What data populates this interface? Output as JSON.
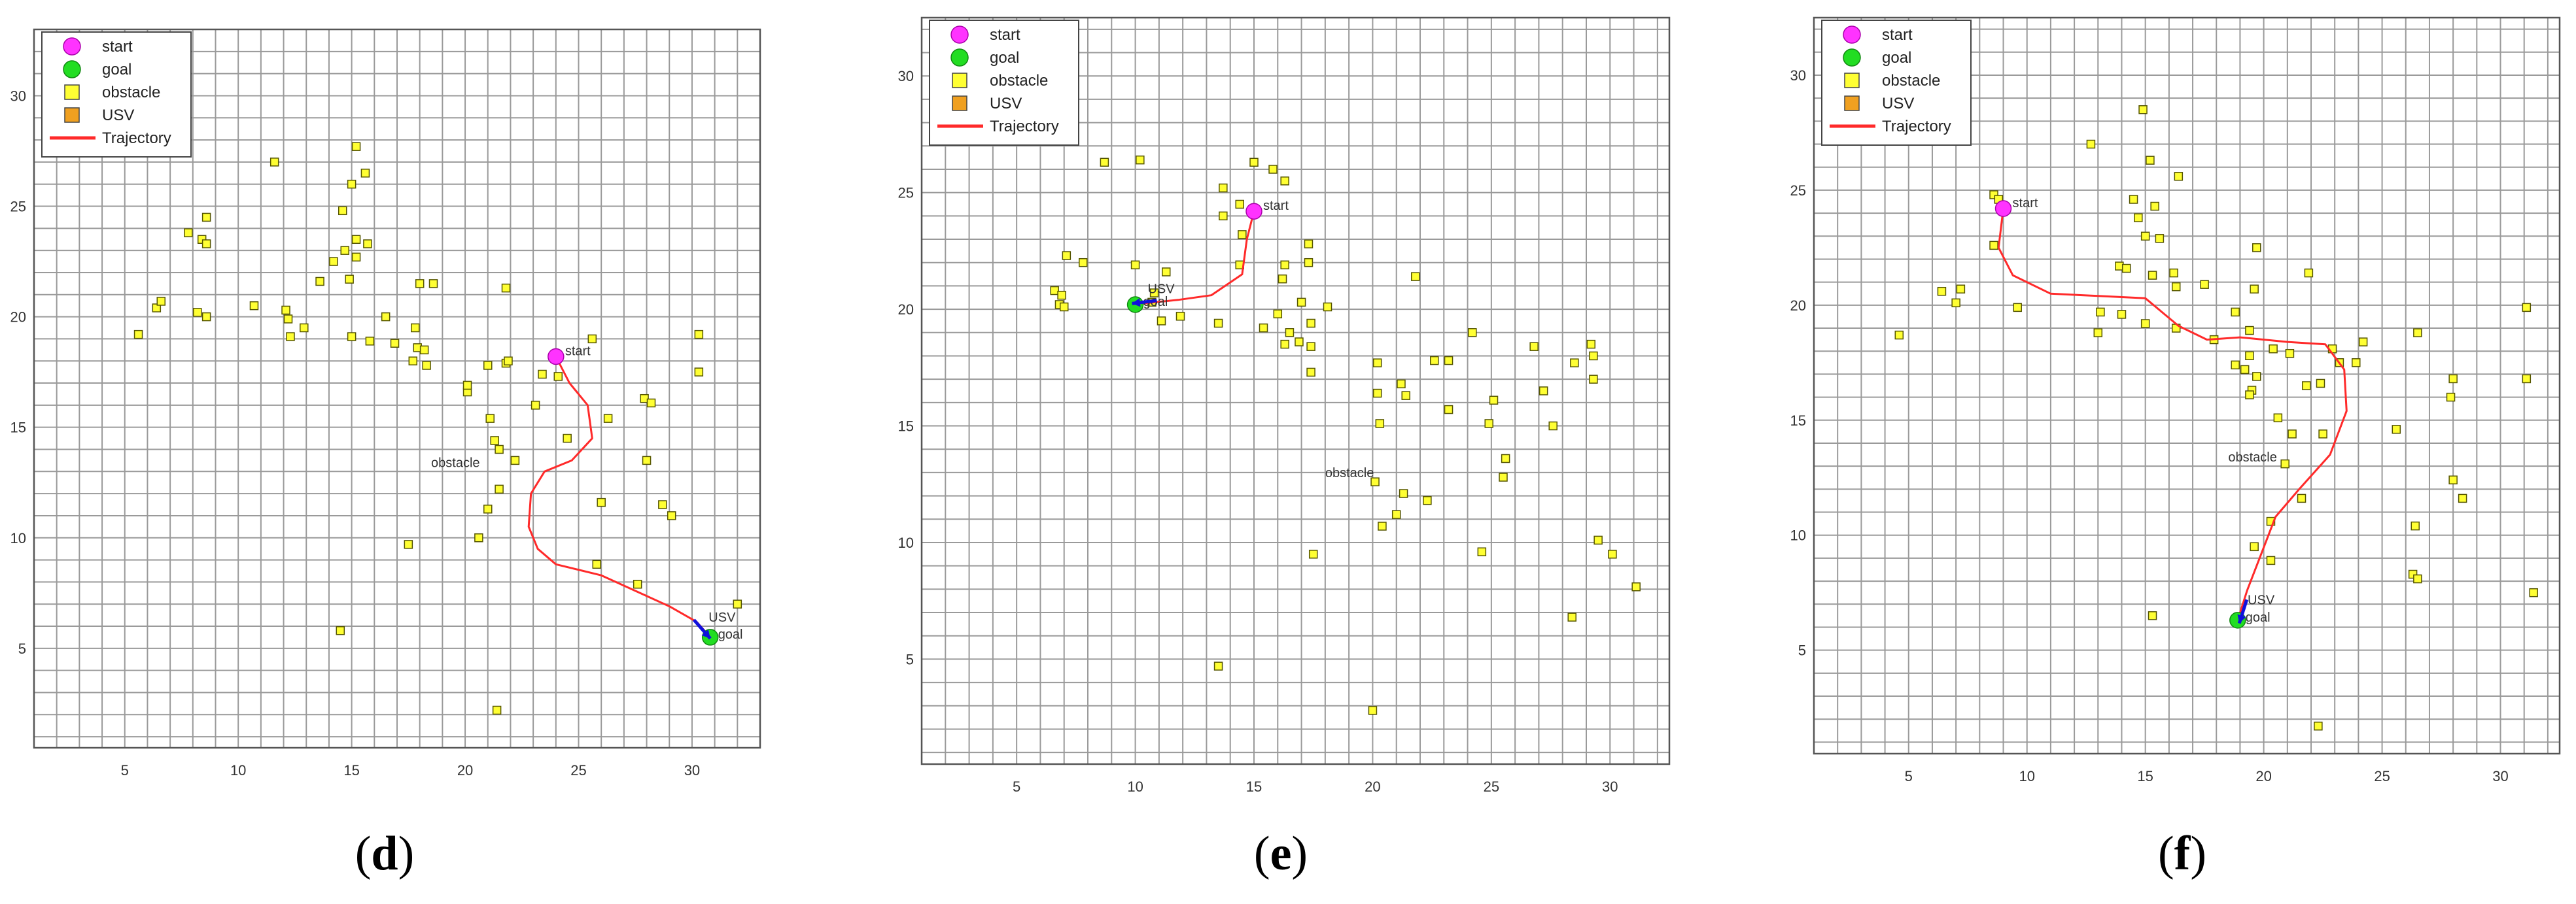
{
  "legend_labels": [
    "start",
    "goal",
    "obstacle",
    "USV",
    "Trajectory"
  ],
  "colors": {
    "start": "#ff33ff",
    "goal": "#22dd22",
    "obstacle": "#ffff33",
    "usv": "#f0a020",
    "trajectory": "#ff2a2a",
    "usv_arrow": "#1010dd",
    "grid": "#9a9a9a"
  },
  "chart_data": [
    {
      "type": "scatter",
      "caption_letter": "d",
      "title": "",
      "xlabel": "",
      "ylabel": "",
      "xlim": [
        1,
        33
      ],
      "ylim": [
        0.5,
        33
      ],
      "grid": true,
      "legend_position": "top-left",
      "x_ticks": [
        5,
        10,
        15,
        20,
        25,
        30
      ],
      "y_ticks": [
        5,
        10,
        15,
        20,
        25,
        30
      ],
      "obstacle_label": "obstacle",
      "obstacle_label_at": [
        18.5,
        13.2
      ],
      "start": {
        "x": 24,
        "y": 18.2,
        "label": "start"
      },
      "goal": {
        "x": 30.8,
        "y": 5.5,
        "label": "goal"
      },
      "usv": {
        "x": 30.5,
        "y": 5.8,
        "label": "USV"
      },
      "trajectory": [
        [
          24,
          18.2
        ],
        [
          24.6,
          17
        ],
        [
          25.4,
          16
        ],
        [
          25.6,
          14.5
        ],
        [
          24.7,
          13.5
        ],
        [
          23.5,
          13
        ],
        [
          22.9,
          12
        ],
        [
          22.8,
          10.5
        ],
        [
          23.2,
          9.5
        ],
        [
          24,
          8.8
        ],
        [
          26,
          8.3
        ],
        [
          27.5,
          7.6
        ],
        [
          29,
          6.9
        ],
        [
          30.2,
          6.2
        ],
        [
          30.8,
          5.5
        ]
      ],
      "obstacles": [
        [
          11.6,
          27
        ],
        [
          15.2,
          27.7
        ],
        [
          15.6,
          26.5
        ],
        [
          15,
          26
        ],
        [
          8.6,
          24.5
        ],
        [
          14.6,
          24.8
        ],
        [
          7.8,
          23.8
        ],
        [
          8.4,
          23.5
        ],
        [
          8.6,
          23.3
        ],
        [
          15.2,
          23.5
        ],
        [
          15.7,
          23.3
        ],
        [
          14.7,
          23
        ],
        [
          15.2,
          22.7
        ],
        [
          14.2,
          22.5
        ],
        [
          13.6,
          21.6
        ],
        [
          14.9,
          21.7
        ],
        [
          18,
          21.5
        ],
        [
          18.6,
          21.5
        ],
        [
          21.8,
          21.3
        ],
        [
          6.4,
          20.4
        ],
        [
          6.6,
          20.7
        ],
        [
          8.2,
          20.2
        ],
        [
          8.6,
          20
        ],
        [
          10.7,
          20.5
        ],
        [
          12.1,
          20.3
        ],
        [
          12.2,
          19.9
        ],
        [
          12.9,
          19.5
        ],
        [
          16.5,
          20
        ],
        [
          5.6,
          19.2
        ],
        [
          12.3,
          19.1
        ],
        [
          15,
          19.1
        ],
        [
          15.8,
          18.9
        ],
        [
          16.9,
          18.8
        ],
        [
          17.9,
          18.6
        ],
        [
          18.2,
          18.5
        ],
        [
          17.8,
          19.5
        ],
        [
          18.3,
          17.8
        ],
        [
          17.7,
          18
        ],
        [
          21,
          17.8
        ],
        [
          21.8,
          17.9
        ],
        [
          21.9,
          18
        ],
        [
          23.4,
          17.4
        ],
        [
          24.1,
          17.3
        ],
        [
          25.6,
          19
        ],
        [
          30.3,
          19.2
        ],
        [
          30.3,
          17.5
        ],
        [
          23.1,
          16
        ],
        [
          20.1,
          16.6
        ],
        [
          20.1,
          16.9
        ],
        [
          21.1,
          15.4
        ],
        [
          21.3,
          14.4
        ],
        [
          21.5,
          14
        ],
        [
          22.2,
          13.5
        ],
        [
          24.5,
          14.5
        ],
        [
          27.9,
          16.3
        ],
        [
          28.2,
          16.1
        ],
        [
          26.3,
          15.4
        ],
        [
          28,
          13.5
        ],
        [
          21.5,
          12.2
        ],
        [
          21,
          11.3
        ],
        [
          26,
          11.6
        ],
        [
          28.7,
          11.5
        ],
        [
          29.1,
          11
        ],
        [
          20.6,
          10
        ],
        [
          17.5,
          9.7
        ],
        [
          25.8,
          8.8
        ],
        [
          27.6,
          7.9
        ],
        [
          32,
          7
        ],
        [
          14.5,
          5.8
        ],
        [
          21.4,
          2.2
        ]
      ]
    },
    {
      "type": "scatter",
      "caption_letter": "e",
      "title": "",
      "xlabel": "",
      "ylabel": "",
      "xlim": [
        1,
        32.5
      ],
      "ylim": [
        0.5,
        32.5
      ],
      "grid": true,
      "legend_position": "top-left",
      "x_ticks": [
        5,
        10,
        15,
        20,
        25,
        30
      ],
      "y_ticks": [
        5,
        10,
        15,
        20,
        25,
        30
      ],
      "obstacle_label": "obstacle",
      "obstacle_label_at": [
        18,
        12.8
      ],
      "start": {
        "x": 15,
        "y": 24.2,
        "label": "start"
      },
      "goal": {
        "x": 10,
        "y": 20.2,
        "label": "goal"
      },
      "usv": {
        "x": 10.3,
        "y": 20.3,
        "label": "USV"
      },
      "trajectory": [
        [
          15,
          24.2
        ],
        [
          14.7,
          23
        ],
        [
          14.5,
          21.5
        ],
        [
          13.2,
          20.6
        ],
        [
          11.8,
          20.4
        ],
        [
          10.8,
          20.3
        ],
        [
          10,
          20.2
        ]
      ],
      "obstacles": [
        [
          8.7,
          26.3
        ],
        [
          10.2,
          26.4
        ],
        [
          15,
          26.3
        ],
        [
          15.8,
          26
        ],
        [
          16.3,
          25.5
        ],
        [
          13.7,
          25.2
        ],
        [
          14.4,
          24.5
        ],
        [
          13.7,
          24
        ],
        [
          14.5,
          23.2
        ],
        [
          7.8,
          22
        ],
        [
          7.1,
          22.3
        ],
        [
          10,
          21.9
        ],
        [
          11.3,
          21.6
        ],
        [
          14.4,
          21.9
        ],
        [
          16.3,
          21.9
        ],
        [
          17.3,
          22.8
        ],
        [
          17.3,
          22
        ],
        [
          16.2,
          21.3
        ],
        [
          21.8,
          21.4
        ],
        [
          6.6,
          20.8
        ],
        [
          6.9,
          20.6
        ],
        [
          6.8,
          20.2
        ],
        [
          7,
          20.1
        ],
        [
          10.8,
          20.7
        ],
        [
          10.7,
          20.3
        ],
        [
          11.9,
          19.7
        ],
        [
          11.1,
          19.5
        ],
        [
          13.5,
          19.4
        ],
        [
          15.4,
          19.2
        ],
        [
          16,
          19.8
        ],
        [
          17,
          20.3
        ],
        [
          18.1,
          20.1
        ],
        [
          17.4,
          19.4
        ],
        [
          16.5,
          19
        ],
        [
          16.9,
          18.6
        ],
        [
          16.3,
          18.5
        ],
        [
          17.4,
          18.4
        ],
        [
          17.4,
          17.3
        ],
        [
          20.2,
          17.7
        ],
        [
          21.2,
          16.8
        ],
        [
          21.4,
          16.3
        ],
        [
          20.2,
          16.4
        ],
        [
          22.6,
          17.8
        ],
        [
          23.2,
          17.8
        ],
        [
          24.2,
          19
        ],
        [
          26.8,
          18.4
        ],
        [
          29.2,
          18.5
        ],
        [
          29.3,
          18
        ],
        [
          29.3,
          17
        ],
        [
          28.5,
          17.7
        ],
        [
          27.2,
          16.5
        ],
        [
          25.1,
          16.1
        ],
        [
          23.2,
          15.7
        ],
        [
          20.3,
          15.1
        ],
        [
          24.9,
          15.1
        ],
        [
          27.6,
          15
        ],
        [
          25.6,
          13.6
        ],
        [
          25.5,
          12.8
        ],
        [
          20.1,
          12.6
        ],
        [
          21.3,
          12.1
        ],
        [
          22.3,
          11.8
        ],
        [
          21,
          11.2
        ],
        [
          20.4,
          10.7
        ],
        [
          29.5,
          10.1
        ],
        [
          30.1,
          9.5
        ],
        [
          31.1,
          8.1
        ],
        [
          17.5,
          9.5
        ],
        [
          24.6,
          9.6
        ],
        [
          28.4,
          6.8
        ],
        [
          13.5,
          4.7
        ],
        [
          20,
          2.8
        ]
      ]
    },
    {
      "type": "scatter",
      "caption_letter": "f",
      "title": "",
      "xlabel": "",
      "ylabel": "",
      "xlim": [
        1,
        32.5
      ],
      "ylim": [
        0.5,
        32.5
      ],
      "grid": true,
      "legend_position": "top-left",
      "x_ticks": [
        5,
        10,
        15,
        20,
        25,
        30
      ],
      "y_ticks": [
        5,
        10,
        15,
        20,
        25,
        30
      ],
      "obstacle_label": "obstacle",
      "obstacle_label_at": [
        18.5,
        13.2
      ],
      "start": {
        "x": 9,
        "y": 24.2,
        "label": "start"
      },
      "goal": {
        "x": 18.9,
        "y": 6.3,
        "label": "goal"
      },
      "usv": {
        "x": 19.1,
        "y": 6.6,
        "label": "USV"
      },
      "trajectory": [
        [
          9,
          24.2
        ],
        [
          8.8,
          22.5
        ],
        [
          9.4,
          21.3
        ],
        [
          11,
          20.5
        ],
        [
          13,
          20.4
        ],
        [
          15,
          20.3
        ],
        [
          16.4,
          19.1
        ],
        [
          17.6,
          18.5
        ],
        [
          19,
          18.6
        ],
        [
          21,
          18.4
        ],
        [
          22.6,
          18.3
        ],
        [
          23.4,
          17.2
        ],
        [
          23.5,
          15.4
        ],
        [
          22.8,
          13.5
        ],
        [
          21.5,
          12
        ],
        [
          20.5,
          10.8
        ],
        [
          19.9,
          9.2
        ],
        [
          19.3,
          7.6
        ],
        [
          18.9,
          6.3
        ]
      ],
      "obstacles": [
        [
          14.9,
          28.5
        ],
        [
          12.7,
          27
        ],
        [
          15.2,
          26.3
        ],
        [
          16.4,
          25.6
        ],
        [
          8.6,
          24.8
        ],
        [
          8.8,
          24.6
        ],
        [
          14.5,
          24.6
        ],
        [
          15.4,
          24.3
        ],
        [
          14.7,
          23.8
        ],
        [
          15,
          23
        ],
        [
          15.6,
          22.9
        ],
        [
          19.7,
          22.5
        ],
        [
          8.6,
          22.6
        ],
        [
          13.9,
          21.7
        ],
        [
          14.2,
          21.6
        ],
        [
          15.3,
          21.3
        ],
        [
          16.2,
          21.4
        ],
        [
          21.9,
          21.4
        ],
        [
          6.4,
          20.6
        ],
        [
          7.2,
          20.7
        ],
        [
          7,
          20.1
        ],
        [
          9.6,
          19.9
        ],
        [
          13.1,
          19.7
        ],
        [
          14,
          19.6
        ],
        [
          15,
          19.2
        ],
        [
          16.3,
          20.8
        ],
        [
          17.5,
          20.9
        ],
        [
          18.8,
          19.7
        ],
        [
          19.6,
          20.7
        ],
        [
          4.6,
          18.7
        ],
        [
          13,
          18.8
        ],
        [
          16.3,
          19
        ],
        [
          17.9,
          18.5
        ],
        [
          19.4,
          18.9
        ],
        [
          20.4,
          18.1
        ],
        [
          21.1,
          17.9
        ],
        [
          22.9,
          18.1
        ],
        [
          23.2,
          17.5
        ],
        [
          24.2,
          18.4
        ],
        [
          26.5,
          18.8
        ],
        [
          31.1,
          19.9
        ],
        [
          19.4,
          17.8
        ],
        [
          19.2,
          17.2
        ],
        [
          18.8,
          17.4
        ],
        [
          19.7,
          16.9
        ],
        [
          19.5,
          16.3
        ],
        [
          19.4,
          16.1
        ],
        [
          21.8,
          16.5
        ],
        [
          22.4,
          16.6
        ],
        [
          23.9,
          17.5
        ],
        [
          28,
          16.8
        ],
        [
          27.9,
          16
        ],
        [
          31.1,
          16.8
        ],
        [
          21.2,
          14.4
        ],
        [
          20.6,
          15.1
        ],
        [
          22.5,
          14.4
        ],
        [
          25.6,
          14.6
        ],
        [
          28,
          12.4
        ],
        [
          28.4,
          11.6
        ],
        [
          20.9,
          13.1
        ],
        [
          21.6,
          11.6
        ],
        [
          26.4,
          10.4
        ],
        [
          20.3,
          10.6
        ],
        [
          19.6,
          9.5
        ],
        [
          20.3,
          8.9
        ],
        [
          26.3,
          8.3
        ],
        [
          26.5,
          8.1
        ],
        [
          31.4,
          7.5
        ],
        [
          15.3,
          6.5
        ],
        [
          22.3,
          1.7
        ]
      ]
    }
  ]
}
